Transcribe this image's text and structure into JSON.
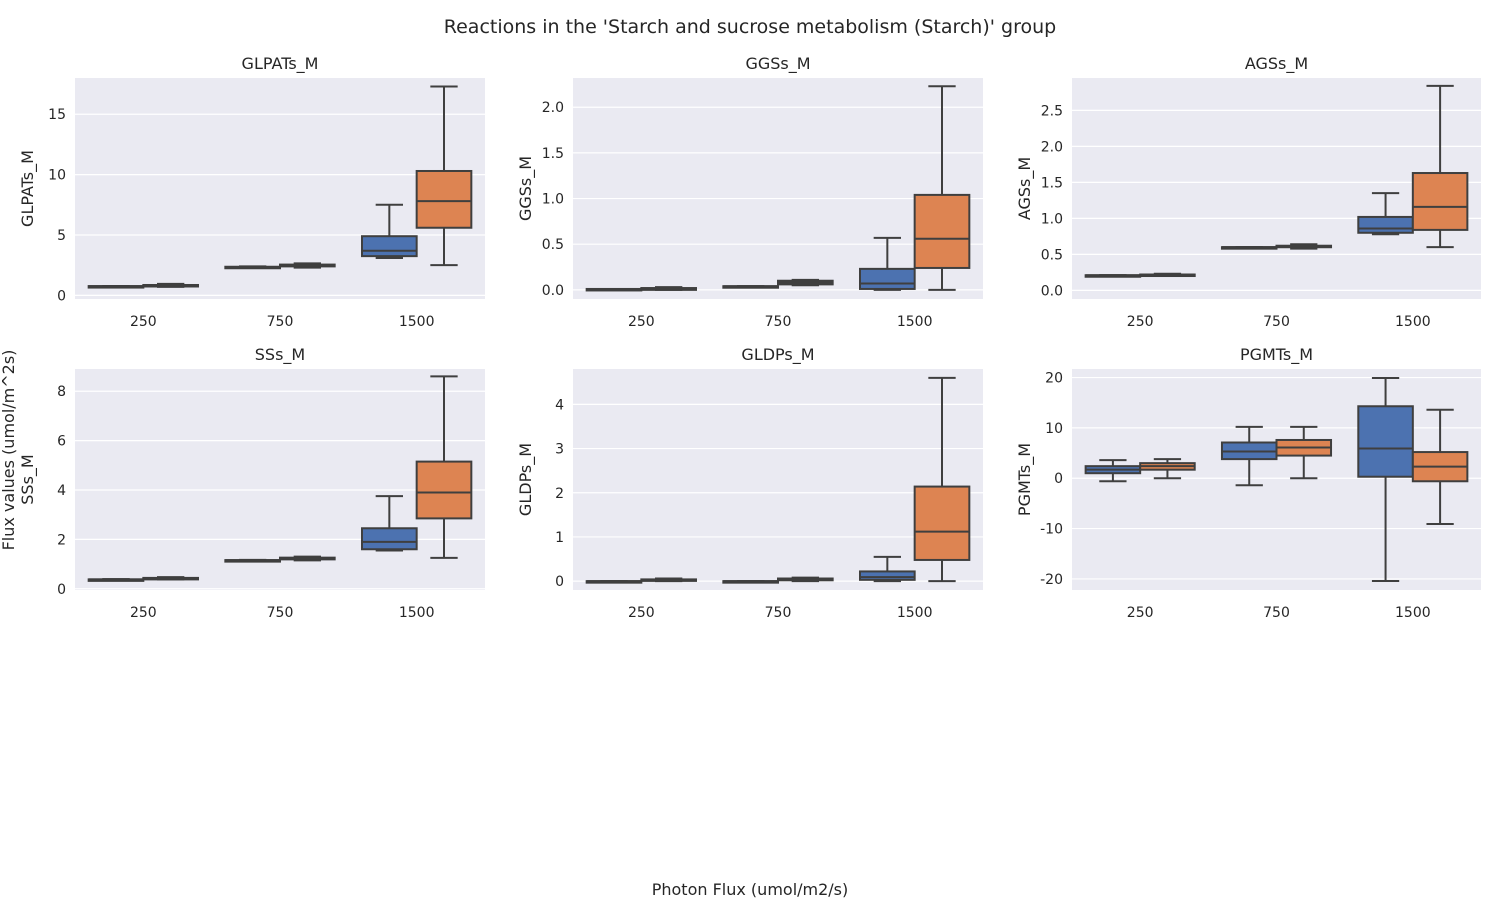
{
  "figure": {
    "title": "Reactions in the 'Starch and sucrose metabolism (Starch)' group",
    "xlabel": "Photon Flux (umol/m2/s)",
    "ylabel": "Flux values (umol/m^2s)"
  },
  "colors": {
    "series1": "#4c72b0",
    "series2": "#dd8452",
    "panel_bg": "#eaeaf2",
    "grid": "#ffffff",
    "line": "#3f3f3f"
  },
  "chart_data": [
    {
      "type": "box",
      "title": "GLPATs_M",
      "ylabel": "GLPATs_M",
      "categories": [
        "250",
        "750",
        "1500"
      ],
      "yticks": [
        0,
        5,
        10,
        15
      ],
      "ylim": [
        -0.3,
        18.0
      ],
      "series": [
        {
          "boxes": [
            {
              "min": 0.75,
              "q1": 0.75,
              "median": 0.76,
              "q3": 0.77,
              "max": 0.78
            },
            {
              "min": 2.3,
              "q1": 2.32,
              "median": 2.34,
              "q3": 2.37,
              "max": 2.4
            },
            {
              "min": 3.1,
              "q1": 3.25,
              "median": 3.7,
              "q3": 4.9,
              "max": 7.5
            }
          ]
        },
        {
          "boxes": [
            {
              "min": 0.7,
              "q1": 0.78,
              "median": 0.82,
              "q3": 0.86,
              "max": 0.95
            },
            {
              "min": 2.3,
              "q1": 2.4,
              "median": 2.45,
              "q3": 2.55,
              "max": 2.65
            },
            {
              "min": 2.5,
              "q1": 5.6,
              "median": 7.8,
              "q3": 10.3,
              "max": 17.3
            }
          ]
        }
      ]
    },
    {
      "type": "box",
      "title": "GGSs_M",
      "ylabel": "GGSs_M",
      "categories": [
        "250",
        "750",
        "1500"
      ],
      "yticks": [
        0.0,
        0.5,
        1.0,
        1.5,
        2.0
      ],
      "yticklabels": [
        "0.0",
        "0.5",
        "1.0",
        "1.5",
        "2.0"
      ],
      "ylim": [
        -0.1,
        2.32
      ],
      "series": [
        {
          "boxes": [
            {
              "min": 0.01,
              "q1": 0.01,
              "median": 0.01,
              "q3": 0.01,
              "max": 0.01
            },
            {
              "min": 0.04,
              "q1": 0.04,
              "median": 0.04,
              "q3": 0.04,
              "max": 0.04
            },
            {
              "min": 0.0,
              "q1": 0.01,
              "median": 0.07,
              "q3": 0.23,
              "max": 0.57
            }
          ]
        },
        {
          "boxes": [
            {
              "min": 0.0,
              "q1": 0.0,
              "median": 0.01,
              "q3": 0.02,
              "max": 0.03
            },
            {
              "min": 0.05,
              "q1": 0.06,
              "median": 0.08,
              "q3": 0.1,
              "max": 0.11
            },
            {
              "min": 0.0,
              "q1": 0.24,
              "median": 0.56,
              "q3": 1.04,
              "max": 2.23
            }
          ]
        }
      ]
    },
    {
      "type": "box",
      "title": "AGSs_M",
      "ylabel": "AGSs_M",
      "categories": [
        "250",
        "750",
        "1500"
      ],
      "yticks": [
        0.0,
        0.5,
        1.0,
        1.5,
        2.0,
        2.5
      ],
      "yticklabels": [
        "0.0",
        "0.5",
        "1.0",
        "1.5",
        "2.0",
        "2.5"
      ],
      "ylim": [
        -0.12,
        2.95
      ],
      "series": [
        {
          "boxes": [
            {
              "min": 0.21,
              "q1": 0.21,
              "median": 0.21,
              "q3": 0.21,
              "max": 0.21
            },
            {
              "min": 0.6,
              "q1": 0.6,
              "median": 0.6,
              "q3": 0.6,
              "max": 0.6
            },
            {
              "min": 0.78,
              "q1": 0.8,
              "median": 0.86,
              "q3": 1.02,
              "max": 1.35
            }
          ]
        },
        {
          "boxes": [
            {
              "min": 0.21,
              "q1": 0.21,
              "median": 0.22,
              "q3": 0.22,
              "max": 0.23
            },
            {
              "min": 0.58,
              "q1": 0.6,
              "median": 0.61,
              "q3": 0.62,
              "max": 0.64
            },
            {
              "min": 0.6,
              "q1": 0.84,
              "median": 1.16,
              "q3": 1.63,
              "max": 2.84
            }
          ]
        }
      ]
    },
    {
      "type": "box",
      "title": "SSs_M",
      "ylabel": "SSs_M",
      "categories": [
        "250",
        "750",
        "1500"
      ],
      "yticks": [
        0,
        2,
        4,
        6,
        8
      ],
      "ylim": [
        -0.05,
        8.9
      ],
      "series": [
        {
          "boxes": [
            {
              "min": 0.38,
              "q1": 0.38,
              "median": 0.38,
              "q3": 0.38,
              "max": 0.39
            },
            {
              "min": 1.15,
              "q1": 1.15,
              "median": 1.16,
              "q3": 1.16,
              "max": 1.17
            },
            {
              "min": 1.55,
              "q1": 1.6,
              "median": 1.9,
              "q3": 2.45,
              "max": 3.75
            }
          ]
        },
        {
          "boxes": [
            {
              "min": 0.38,
              "q1": 0.4,
              "median": 0.42,
              "q3": 0.44,
              "max": 0.47
            },
            {
              "min": 1.15,
              "q1": 1.19,
              "median": 1.22,
              "q3": 1.26,
              "max": 1.3
            },
            {
              "min": 1.25,
              "q1": 2.85,
              "median": 3.9,
              "q3": 5.15,
              "max": 8.6
            }
          ]
        }
      ]
    },
    {
      "type": "box",
      "title": "GLDPs_M",
      "ylabel": "GLDPs_M",
      "categories": [
        "250",
        "750",
        "1500"
      ],
      "yticks": [
        0,
        1,
        2,
        3,
        4
      ],
      "ylim": [
        -0.2,
        4.8
      ],
      "series": [
        {
          "boxes": [
            {
              "min": 0.0,
              "q1": 0.0,
              "median": 0.0,
              "q3": 0.0,
              "max": 0.0
            },
            {
              "min": 0.0,
              "q1": 0.0,
              "median": 0.0,
              "q3": 0.0,
              "max": 0.0
            },
            {
              "min": 0.0,
              "q1": 0.03,
              "median": 0.09,
              "q3": 0.22,
              "max": 0.55
            }
          ]
        },
        {
          "boxes": [
            {
              "min": 0.0,
              "q1": 0.01,
              "median": 0.02,
              "q3": 0.04,
              "max": 0.06
            },
            {
              "min": 0.0,
              "q1": 0.02,
              "median": 0.04,
              "q3": 0.06,
              "max": 0.08
            },
            {
              "min": 0.0,
              "q1": 0.48,
              "median": 1.12,
              "q3": 2.14,
              "max": 4.6
            }
          ]
        }
      ]
    },
    {
      "type": "box",
      "title": "PGMTs_M",
      "ylabel": "PGMTs_M",
      "categories": [
        "250",
        "750",
        "1500"
      ],
      "yticks": [
        -20,
        -10,
        0,
        10,
        20
      ],
      "ylim": [
        -22.2,
        21.7
      ],
      "series": [
        {
          "boxes": [
            {
              "min": -0.6,
              "q1": 1.0,
              "median": 1.7,
              "q3": 2.4,
              "max": 3.6
            },
            {
              "min": -1.4,
              "q1": 3.8,
              "median": 5.3,
              "q3": 7.1,
              "max": 10.2
            },
            {
              "min": -20.4,
              "q1": 0.3,
              "median": 5.9,
              "q3": 14.3,
              "max": 19.9
            }
          ]
        },
        {
          "boxes": [
            {
              "min": 0.0,
              "q1": 1.7,
              "median": 2.4,
              "q3": 3.0,
              "max": 3.8
            },
            {
              "min": 0.0,
              "q1": 4.5,
              "median": 6.1,
              "q3": 7.6,
              "max": 10.2
            },
            {
              "min": -9.1,
              "q1": -0.6,
              "median": 2.3,
              "q3": 5.2,
              "max": 13.6
            }
          ]
        }
      ]
    }
  ]
}
